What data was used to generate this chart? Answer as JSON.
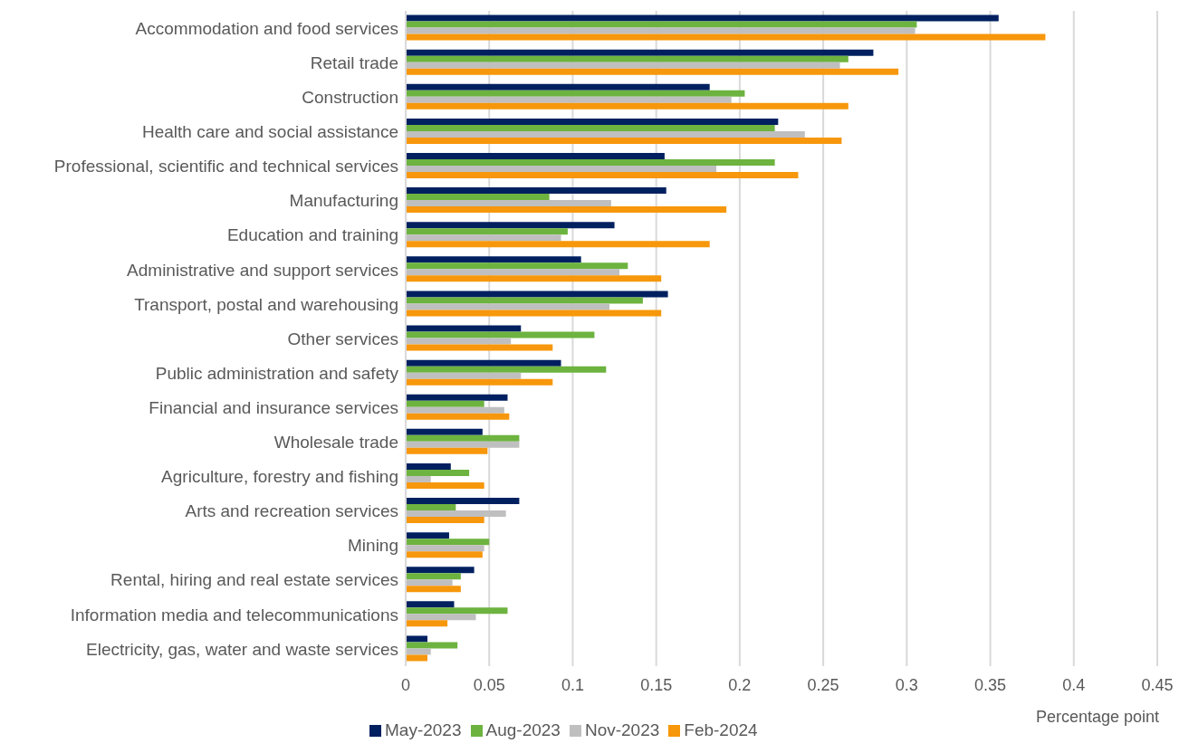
{
  "chart_data": {
    "type": "bar",
    "orientation": "horizontal",
    "xlabel": "Percentage point",
    "categories": [
      "Accommodation and food services",
      "Retail trade",
      "Construction",
      "Health care and social assistance",
      "Professional, scientific and technical services",
      "Manufacturing",
      "Education and training",
      "Administrative and support services",
      "Transport, postal and warehousing",
      "Other services",
      "Public administration and safety",
      "Financial and insurance services",
      "Wholesale trade",
      "Agriculture, forestry and fishing",
      "Arts and recreation services",
      "Mining",
      "Rental, hiring and real estate services",
      "Information media and telecommunications",
      "Electricity, gas, water and waste services"
    ],
    "series": [
      {
        "name": "May-2023",
        "color": "#002060",
        "values": [
          0.355,
          0.28,
          0.182,
          0.223,
          0.155,
          0.156,
          0.125,
          0.105,
          0.157,
          0.069,
          0.093,
          0.061,
          0.046,
          0.027,
          0.068,
          0.026,
          0.041,
          0.029,
          0.013
        ]
      },
      {
        "name": "Aug-2023",
        "color": "#6db33f",
        "values": [
          0.306,
          0.265,
          0.203,
          0.221,
          0.221,
          0.086,
          0.097,
          0.133,
          0.142,
          0.113,
          0.12,
          0.047,
          0.068,
          0.038,
          0.03,
          0.05,
          0.033,
          0.061,
          0.031
        ]
      },
      {
        "name": "Nov-2023",
        "color": "#bfbfbf",
        "values": [
          0.305,
          0.26,
          0.195,
          0.239,
          0.186,
          0.123,
          0.093,
          0.128,
          0.122,
          0.063,
          0.069,
          0.059,
          0.068,
          0.015,
          0.06,
          0.047,
          0.028,
          0.042,
          0.015
        ]
      },
      {
        "name": "Feb-2024",
        "color": "#f7970b",
        "values": [
          0.383,
          0.295,
          0.265,
          0.261,
          0.235,
          0.192,
          0.182,
          0.153,
          0.153,
          0.088,
          0.088,
          0.062,
          0.049,
          0.047,
          0.047,
          0.046,
          0.033,
          0.025,
          0.013
        ]
      }
    ],
    "xlim": [
      0,
      0.45
    ],
    "xticks": [
      0,
      0.05,
      0.1,
      0.15,
      0.2,
      0.25,
      0.3,
      0.35,
      0.4,
      0.45
    ],
    "grid": "x",
    "legend": "bottom"
  }
}
